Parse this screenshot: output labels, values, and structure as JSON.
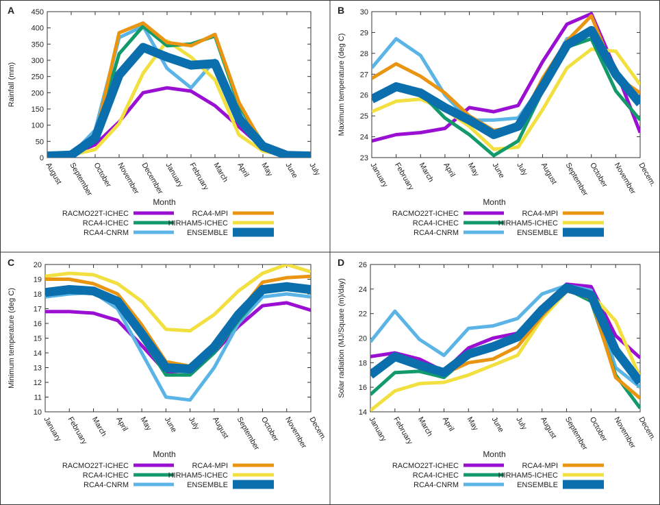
{
  "colors": {
    "RACMO22T-ICHEC": "#9a0fd2",
    "RCA4-MPI": "#e99512",
    "RCA4-ICHEC": "#139a6b",
    "HIRHAM5-ICHEC": "#f2e040",
    "RCA4-CNRM": "#5ab4e6",
    "ENSEMBLE": "#0b6fad"
  },
  "legend_entries": [
    "RACMO22T-ICHEC",
    "RCA4-MPI",
    "RCA4-ICHEC",
    "HIRHAM5-ICHEC",
    "RCA4-CNRM",
    "ENSEMBLE"
  ],
  "chart_data": [
    {
      "panel": "A",
      "type": "line",
      "xlabel": "Month",
      "ylabel": "Rainfall (mm)",
      "ylim": [
        0,
        450
      ],
      "yticks": [
        0,
        50,
        100,
        150,
        200,
        250,
        300,
        350,
        400,
        450
      ],
      "categories": [
        "August",
        "September",
        "October",
        "November",
        "December",
        "January",
        "February",
        "March",
        "April",
        "May",
        "June",
        "July"
      ],
      "series": [
        {
          "name": "RACMO22T-ICHEC",
          "values": [
            5,
            8,
            40,
            110,
            200,
            215,
            205,
            160,
            95,
            30,
            7,
            5
          ]
        },
        {
          "name": "RCA4-MPI",
          "values": [
            5,
            8,
            60,
            385,
            415,
            355,
            345,
            380,
            170,
            40,
            7,
            5
          ]
        },
        {
          "name": "RCA4-ICHEC",
          "values": [
            5,
            8,
            65,
            320,
            405,
            345,
            350,
            375,
            160,
            45,
            7,
            5
          ]
        },
        {
          "name": "HIRHAM5-ICHEC",
          "values": [
            5,
            8,
            25,
            105,
            260,
            360,
            310,
            240,
            70,
            20,
            7,
            5
          ]
        },
        {
          "name": "RCA4-CNRM",
          "values": [
            5,
            8,
            85,
            370,
            405,
            275,
            215,
            300,
            140,
            20,
            7,
            5
          ]
        },
        {
          "name": "ENSEMBLE",
          "values": [
            5,
            8,
            60,
            255,
            340,
            310,
            285,
            290,
            120,
            35,
            7,
            5
          ]
        }
      ]
    },
    {
      "panel": "B",
      "type": "line",
      "xlabel": "Month",
      "ylabel": "Maximum temperature (deg C)",
      "ylim": [
        23,
        30
      ],
      "yticks": [
        23,
        24,
        25,
        26,
        27,
        28,
        29,
        30
      ],
      "categories": [
        "January",
        "February",
        "March",
        "April",
        "May",
        "June",
        "July",
        "August",
        "September",
        "October",
        "November",
        "Decem."
      ],
      "series": [
        {
          "name": "RACMO22T-ICHEC",
          "values": [
            23.8,
            24.1,
            24.2,
            24.4,
            25.4,
            25.2,
            25.5,
            27.6,
            29.4,
            29.9,
            27.2,
            24.2
          ]
        },
        {
          "name": "RCA4-MPI",
          "values": [
            26.8,
            27.5,
            26.9,
            26.1,
            25.0,
            24.3,
            24.5,
            26.8,
            28.6,
            29.8,
            26.9,
            26.1
          ]
        },
        {
          "name": "RCA4-ICHEC",
          "values": [
            25.9,
            26.4,
            26.1,
            24.9,
            24.1,
            23.1,
            23.8,
            26.2,
            28.3,
            28.7,
            26.2,
            24.8
          ]
        },
        {
          "name": "HIRHAM5-ICHEC",
          "values": [
            25.2,
            25.7,
            25.8,
            25.3,
            24.5,
            23.4,
            23.5,
            25.3,
            27.3,
            28.2,
            28.1,
            26.5
          ]
        },
        {
          "name": "RCA4-CNRM",
          "values": [
            27.3,
            28.7,
            27.9,
            26.0,
            24.8,
            24.8,
            24.9,
            26.5,
            28.7,
            29.0,
            27.0,
            25.6
          ]
        },
        {
          "name": "ENSEMBLE",
          "values": [
            25.8,
            26.4,
            26.1,
            25.4,
            24.8,
            24.1,
            24.5,
            26.4,
            28.4,
            29.1,
            27.0,
            25.6
          ]
        }
      ]
    },
    {
      "panel": "C",
      "type": "line",
      "xlabel": "Month",
      "ylabel": "Minimum temperature (deg C)",
      "ylim": [
        10,
        20
      ],
      "yticks": [
        10,
        11,
        12,
        13,
        14,
        15,
        16,
        17,
        18,
        19,
        20
      ],
      "categories": [
        "January",
        "February",
        "March",
        "April",
        "May",
        "June",
        "July",
        "August",
        "September",
        "October",
        "November",
        "Decem."
      ],
      "series": [
        {
          "name": "RACMO22T-ICHEC",
          "values": [
            16.8,
            16.8,
            16.7,
            16.2,
            14.5,
            12.7,
            12.8,
            14.0,
            15.8,
            17.2,
            17.4,
            16.9
          ]
        },
        {
          "name": "RCA4-MPI",
          "values": [
            19.0,
            19.0,
            18.7,
            18.0,
            15.9,
            13.4,
            13.1,
            14.5,
            16.7,
            18.8,
            19.1,
            19.2
          ]
        },
        {
          "name": "RCA4-ICHEC",
          "values": [
            18.2,
            18.2,
            18.1,
            17.5,
            15.0,
            12.5,
            12.5,
            14.0,
            16.2,
            18.1,
            18.3,
            18.1
          ]
        },
        {
          "name": "HIRHAM5-ICHEC",
          "values": [
            19.2,
            19.4,
            19.3,
            18.7,
            17.5,
            15.6,
            15.5,
            16.6,
            18.2,
            19.4,
            20.0,
            19.5
          ]
        },
        {
          "name": "RCA4-CNRM",
          "values": [
            17.8,
            18.0,
            18.1,
            17.0,
            14.0,
            11.0,
            10.8,
            13.0,
            16.0,
            17.8,
            18.0,
            17.8
          ]
        },
        {
          "name": "ENSEMBLE",
          "values": [
            18.1,
            18.3,
            18.2,
            17.5,
            15.3,
            13.0,
            12.9,
            14.4,
            16.6,
            18.3,
            18.5,
            18.3
          ]
        }
      ]
    },
    {
      "panel": "D",
      "type": "line",
      "xlabel": "Month",
      "ylabel": "Solar radiation (MJ/Square (m)/day)",
      "ylim": [
        14,
        26
      ],
      "yticks": [
        14,
        16,
        18,
        20,
        22,
        24,
        26
      ],
      "categories": [
        "January",
        "February",
        "March",
        "April",
        "May",
        "June",
        "July",
        "August",
        "September",
        "October",
        "November",
        "Decem."
      ],
      "series": [
        {
          "name": "RACMO22T-ICHEC",
          "values": [
            18.5,
            18.8,
            18.3,
            17.3,
            19.2,
            20.0,
            20.4,
            22.5,
            24.4,
            24.2,
            20.2,
            18.4
          ]
        },
        {
          "name": "RCA4-MPI",
          "values": [
            17.0,
            18.3,
            17.7,
            17.1,
            18.0,
            18.3,
            19.3,
            21.8,
            24.0,
            23.2,
            16.8,
            15.1
          ]
        },
        {
          "name": "RCA4-ICHEC",
          "values": [
            15.4,
            17.2,
            17.3,
            16.8,
            18.5,
            19.2,
            19.9,
            22.0,
            24.0,
            23.0,
            17.0,
            14.3
          ]
        },
        {
          "name": "HIRHAM5-ICHEC",
          "values": [
            14.1,
            15.7,
            16.3,
            16.4,
            17.0,
            17.8,
            18.6,
            21.6,
            23.8,
            23.6,
            21.4,
            16.8
          ]
        },
        {
          "name": "RCA4-CNRM",
          "values": [
            19.7,
            22.2,
            19.9,
            18.6,
            20.8,
            21.0,
            21.6,
            23.6,
            24.3,
            23.9,
            17.6,
            16.0
          ]
        },
        {
          "name": "ENSEMBLE",
          "values": [
            17.0,
            18.5,
            17.8,
            17.2,
            18.7,
            19.3,
            20.1,
            22.3,
            24.1,
            23.5,
            19.0,
            16.4
          ]
        }
      ]
    }
  ]
}
